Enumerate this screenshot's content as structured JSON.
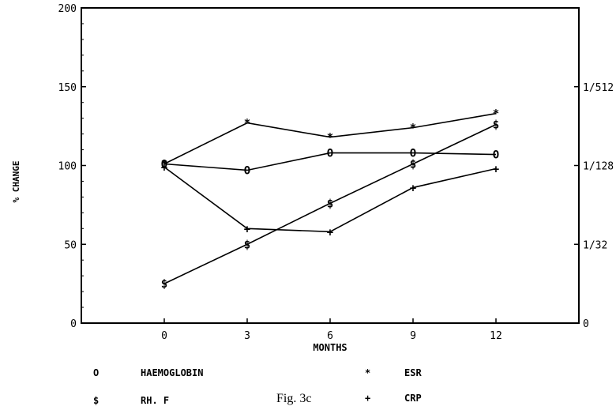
{
  "chart_data": {
    "type": "line",
    "caption": "Fig. 3c",
    "xlabel": "MONTHS",
    "ylabel": "% CHANGE",
    "x": [
      0,
      3,
      6,
      9,
      12
    ],
    "xticks": [
      "0",
      "3",
      "6",
      "9",
      "12"
    ],
    "xlim": [
      -3,
      15
    ],
    "ylim": [
      0,
      200
    ],
    "yticks": [
      "0",
      "50",
      "100",
      "150",
      "200"
    ],
    "y2ticks": [
      "0",
      "1/32",
      "1/128",
      "1/512"
    ],
    "grid": false,
    "legend_position": "bottom",
    "series": [
      {
        "name": "HAEMOGLOBIN",
        "marker": "O",
        "values": [
          101,
          97,
          108,
          108,
          107
        ]
      },
      {
        "name": "ESR",
        "marker": "*",
        "values": [
          101,
          127,
          118,
          124,
          133
        ]
      },
      {
        "name": "RH. F",
        "marker": "$",
        "values": [
          25,
          50,
          76,
          101,
          126
        ]
      },
      {
        "name": "CRP",
        "marker": "+",
        "values": [
          99,
          60,
          58,
          86,
          98
        ]
      }
    ]
  }
}
